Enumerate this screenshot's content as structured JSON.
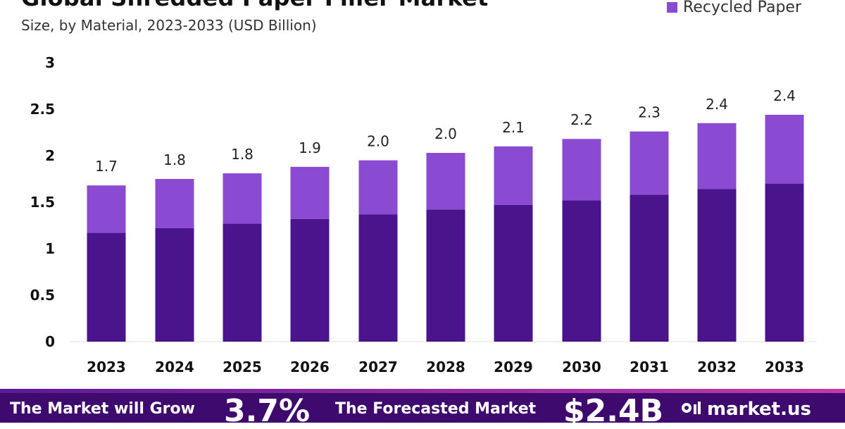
{
  "chart_data": {
    "type": "bar",
    "stacked": true,
    "title": "Global Shredded Paper Filler Market",
    "subtitle": "Size, by Material, 2023-2033 (USD Billion)",
    "categories": [
      "2023",
      "2024",
      "2025",
      "2026",
      "2027",
      "2028",
      "2029",
      "2030",
      "2031",
      "2032",
      "2033"
    ],
    "series": [
      {
        "name": "",
        "values": [
          1.17,
          1.22,
          1.27,
          1.32,
          1.37,
          1.42,
          1.47,
          1.52,
          1.58,
          1.64,
          1.7
        ]
      },
      {
        "name": "Recycled Paper",
        "values": [
          0.51,
          0.53,
          0.54,
          0.56,
          0.58,
          0.61,
          0.63,
          0.66,
          0.68,
          0.71,
          0.74
        ]
      }
    ],
    "totals": [
      1.68,
      1.75,
      1.81,
      1.88,
      1.95,
      2.03,
      2.1,
      2.18,
      2.26,
      2.35,
      2.44
    ],
    "data_labels": [
      "1.7",
      "1.8",
      "1.8",
      "1.9",
      "2.0",
      "2.0",
      "2.1",
      "2.2",
      "2.3",
      "2.4",
      "2.4"
    ],
    "y_ticks": [
      "0",
      "0.5",
      "1",
      "1.5",
      "2",
      "2.5",
      "3"
    ],
    "ylim": [
      0,
      3
    ],
    "xlabel": "",
    "ylabel": "",
    "legend": "top-right",
    "colors": {
      "base": "#4a148c",
      "recycled": "#8a4bd2"
    }
  },
  "banner": {
    "grow_text": "The Market will Grow",
    "cagr": "3.7%",
    "forecast_text": "The Forecasted Market",
    "value": "$2.4B",
    "brand": "market.us",
    "colors": {
      "background": "#3f0a6e"
    }
  }
}
